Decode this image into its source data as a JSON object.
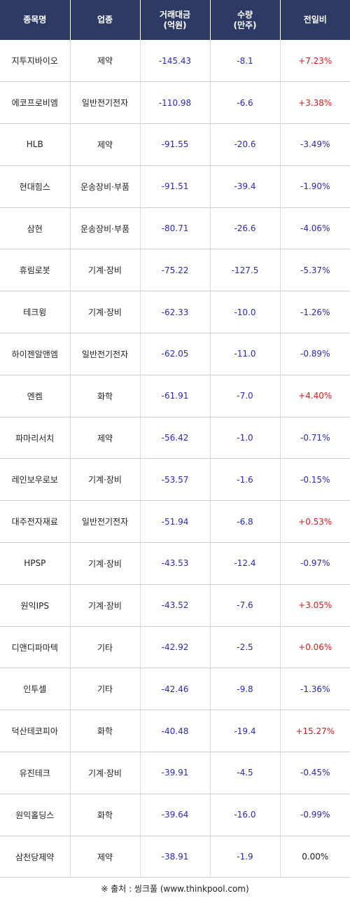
{
  "header": {
    "col1": "종목명",
    "col2": "업종",
    "col3_line1": "거래대금",
    "col3_line2": "(억원)",
    "col4_line1": "수량",
    "col4_line2": "(만주)",
    "col5": "전일비"
  },
  "rows": [
    {
      "name": "지투지바이오",
      "sector": "제약",
      "amount": "-145.43",
      "qty": "-8.1",
      "change": "+7.23%",
      "dir": "up"
    },
    {
      "name": "에코프로비엠",
      "sector": "일반전기전자",
      "amount": "-110.98",
      "qty": "-6.6",
      "change": "+3.38%",
      "dir": "up"
    },
    {
      "name": "HLB",
      "sector": "제약",
      "amount": "-91.55",
      "qty": "-20.6",
      "change": "-3.49%",
      "dir": "down"
    },
    {
      "name": "현대힘스",
      "sector": "운송장비·부품",
      "amount": "-91.51",
      "qty": "-39.4",
      "change": "-1.90%",
      "dir": "down"
    },
    {
      "name": "삼현",
      "sector": "운송장비·부품",
      "amount": "-80.71",
      "qty": "-26.6",
      "change": "-4.06%",
      "dir": "down"
    },
    {
      "name": "휴림로봇",
      "sector": "기계·장비",
      "amount": "-75.22",
      "qty": "-127.5",
      "change": "-5.37%",
      "dir": "down"
    },
    {
      "name": "테크윙",
      "sector": "기계·장비",
      "amount": "-62.33",
      "qty": "-10.0",
      "change": "-1.26%",
      "dir": "down"
    },
    {
      "name": "하이젠알앤엠",
      "sector": "일반전기전자",
      "amount": "-62.05",
      "qty": "-11.0",
      "change": "-0.89%",
      "dir": "down"
    },
    {
      "name": "엔켐",
      "sector": "화학",
      "amount": "-61.91",
      "qty": "-7.0",
      "change": "+4.40%",
      "dir": "up"
    },
    {
      "name": "파마리서치",
      "sector": "제약",
      "amount": "-56.42",
      "qty": "-1.0",
      "change": "-0.71%",
      "dir": "down"
    },
    {
      "name": "레인보우로보",
      "sector": "기계·장비",
      "amount": "-53.57",
      "qty": "-1.6",
      "change": "-0.15%",
      "dir": "down"
    },
    {
      "name": "대주전자재료",
      "sector": "일반전기전자",
      "amount": "-51.94",
      "qty": "-6.8",
      "change": "+0.53%",
      "dir": "up"
    },
    {
      "name": "HPSP",
      "sector": "기계·장비",
      "amount": "-43.53",
      "qty": "-12.4",
      "change": "-0.97%",
      "dir": "down"
    },
    {
      "name": "원익IPS",
      "sector": "기계·장비",
      "amount": "-43.52",
      "qty": "-7.6",
      "change": "+3.05%",
      "dir": "up"
    },
    {
      "name": "디앤디파마텍",
      "sector": "기타",
      "amount": "-42.92",
      "qty": "-2.5",
      "change": "+0.06%",
      "dir": "up"
    },
    {
      "name": "인투셀",
      "sector": "기타",
      "amount": "-42.46",
      "qty": "-9.8",
      "change": "-1.36%",
      "dir": "down"
    },
    {
      "name": "덕산테코피아",
      "sector": "화학",
      "amount": "-40.48",
      "qty": "-19.4",
      "change": "+15.27%",
      "dir": "up"
    },
    {
      "name": "유진테크",
      "sector": "기계·장비",
      "amount": "-39.91",
      "qty": "-4.5",
      "change": "-0.45%",
      "dir": "down"
    },
    {
      "name": "원익홀딩스",
      "sector": "화학",
      "amount": "-39.64",
      "qty": "-16.0",
      "change": "-0.99%",
      "dir": "down"
    },
    {
      "name": "삼천당제약",
      "sector": "제약",
      "amount": "-38.91",
      "qty": "-1.9",
      "change": "0.00%",
      "dir": "flat"
    }
  ],
  "source": "※ 출처 : 씽크풀 (www.thinkpool.com)",
  "colors": {
    "header_bg": "#2d3a63",
    "up": "#d41f1f",
    "down": "#2a2ab5"
  }
}
